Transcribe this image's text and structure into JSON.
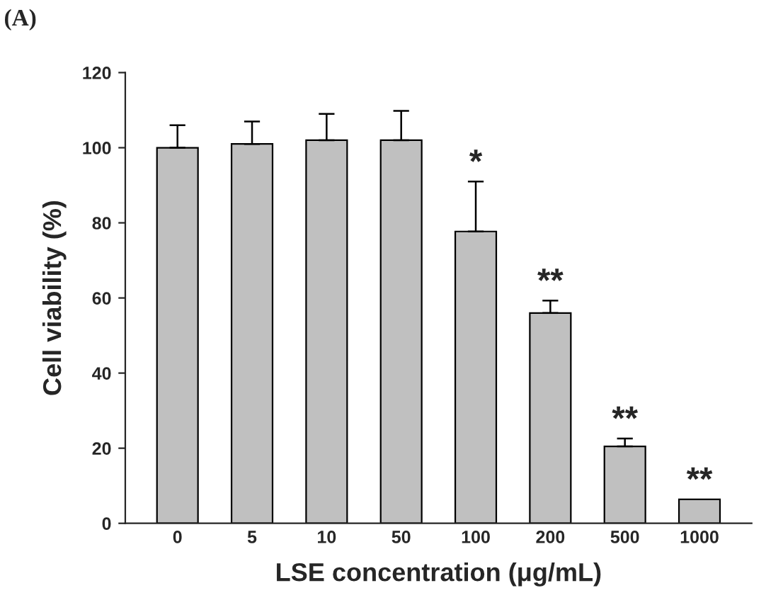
{
  "chart_data": {
    "type": "bar",
    "xlabel": "LSE concentration (μg/mL)",
    "ylabel": "Cell viability (%)",
    "categories": [
      "0",
      "5",
      "10",
      "50",
      "100",
      "200",
      "500",
      "1000"
    ],
    "values": [
      100,
      101,
      102,
      102,
      77.7,
      56,
      20.5,
      6.4
    ],
    "errors": [
      [
        100,
        106
      ],
      [
        101,
        107
      ],
      [
        102,
        109
      ],
      [
        102,
        109.8
      ],
      [
        77.7,
        91
      ],
      [
        56,
        59.3
      ],
      [
        20.5,
        22.6
      ],
      null
    ],
    "color": "#c0c0c0",
    "ylim": [
      0,
      120
    ],
    "yticks": [
      0,
      20,
      40,
      60,
      80,
      100,
      120
    ],
    "grid": false,
    "annotations": [
      "(A)",
      {
        "text": "*",
        "x": "100",
        "y": 91
      },
      {
        "text": "**",
        "x": "200",
        "y": 59.3
      },
      {
        "text": "**",
        "x": "500",
        "y": 22.6
      },
      {
        "text": "**",
        "x": "1000",
        "y": 6.4
      }
    ]
  }
}
